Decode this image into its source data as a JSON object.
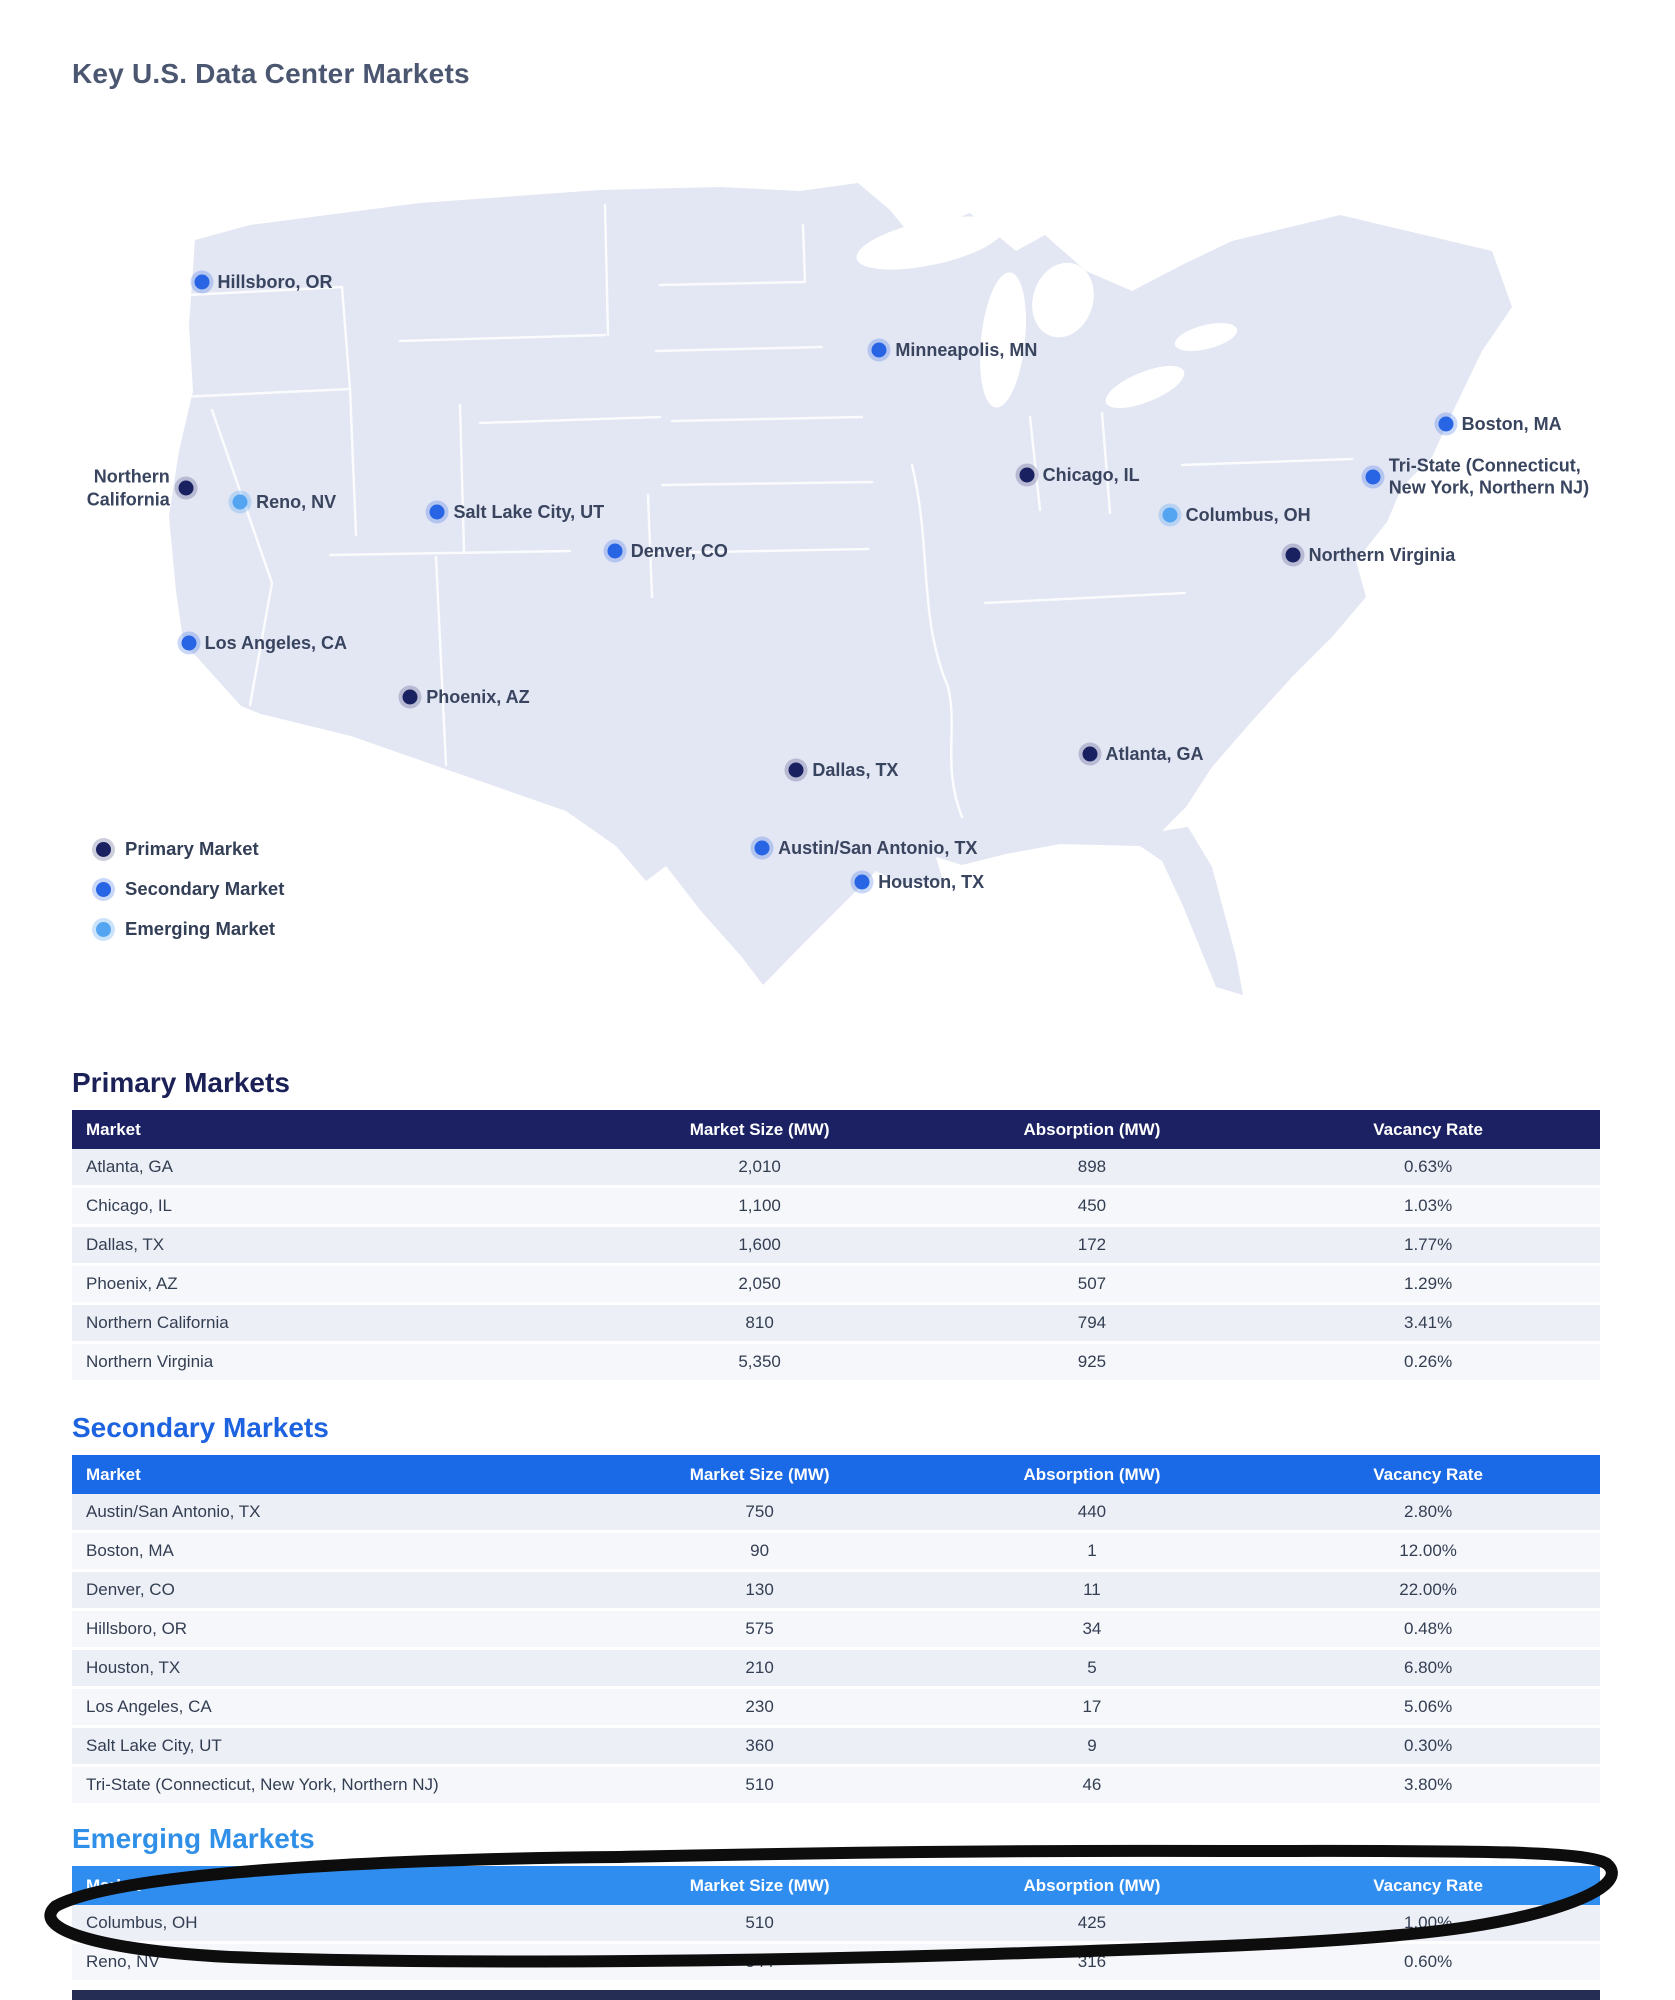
{
  "title": "Key U.S. Data Center Markets",
  "map": {
    "legend": [
      {
        "label": "Primary Market",
        "type": "primary"
      },
      {
        "label": "Secondary Market",
        "type": "secondary"
      },
      {
        "label": "Emerging Market",
        "type": "emerging"
      }
    ],
    "markers": [
      {
        "lines": [
          "Hillsboro, OR"
        ],
        "type": "secondary",
        "x": 7.1,
        "y": 13.9,
        "side": "right"
      },
      {
        "lines": [
          "Minneapolis, MN"
        ],
        "type": "secondary",
        "x": 54.5,
        "y": 22.0,
        "side": "right"
      },
      {
        "lines": [
          "Boston, MA"
        ],
        "type": "secondary",
        "x": 94.1,
        "y": 30.8,
        "side": "right"
      },
      {
        "lines": [
          "Tri-State (Connecticut,",
          "New York, Northern NJ)"
        ],
        "type": "secondary",
        "x": 89.0,
        "y": 37.1,
        "side": "right"
      },
      {
        "lines": [
          "Chicago, IL"
        ],
        "type": "primary",
        "x": 64.8,
        "y": 36.9,
        "side": "right"
      },
      {
        "lines": [
          "Northern",
          "California"
        ],
        "type": "primary",
        "x": 6.0,
        "y": 38.5,
        "side": "left"
      },
      {
        "lines": [
          "Reno, NV"
        ],
        "type": "emerging",
        "x": 9.8,
        "y": 40.1,
        "side": "right"
      },
      {
        "lines": [
          "Salt Lake City, UT"
        ],
        "type": "secondary",
        "x": 23.6,
        "y": 41.3,
        "side": "right"
      },
      {
        "lines": [
          "Columbus, OH"
        ],
        "type": "emerging",
        "x": 74.8,
        "y": 41.7,
        "side": "right"
      },
      {
        "lines": [
          "Denver, CO"
        ],
        "type": "secondary",
        "x": 36.0,
        "y": 46.0,
        "side": "right"
      },
      {
        "lines": [
          "Northern Virginia"
        ],
        "type": "primary",
        "x": 83.4,
        "y": 46.4,
        "side": "right"
      },
      {
        "lines": [
          "Los Angeles, CA"
        ],
        "type": "secondary",
        "x": 6.2,
        "y": 56.9,
        "side": "right"
      },
      {
        "lines": [
          "Phoenix, AZ"
        ],
        "type": "primary",
        "x": 21.7,
        "y": 63.3,
        "side": "right"
      },
      {
        "lines": [
          "Atlanta, GA"
        ],
        "type": "primary",
        "x": 69.2,
        "y": 70.1,
        "side": "right"
      },
      {
        "lines": [
          "Dallas, TX"
        ],
        "type": "primary",
        "x": 48.7,
        "y": 72.0,
        "side": "right"
      },
      {
        "lines": [
          "Austin/San Antonio, TX"
        ],
        "type": "secondary",
        "x": 46.3,
        "y": 81.3,
        "side": "right"
      },
      {
        "lines": [
          "Houston, TX"
        ],
        "type": "secondary",
        "x": 53.3,
        "y": 85.4,
        "side": "right"
      }
    ],
    "marker_colors": {
      "primary": "#1a2161",
      "secondary": "#2765e4",
      "emerging": "#54a5f1"
    }
  },
  "tables": [
    {
      "id": "primary",
      "heading": "Primary Markets",
      "header_color": "#1b2162",
      "columns": [
        "Market",
        "Market Size (MW)",
        "Absorption (MW)",
        "Vacancy Rate"
      ],
      "rows": [
        [
          "Atlanta, GA",
          "2,010",
          "898",
          "0.63%"
        ],
        [
          "Chicago, IL",
          "1,100",
          "450",
          "1.03%"
        ],
        [
          "Dallas, TX",
          "1,600",
          "172",
          "1.77%"
        ],
        [
          "Phoenix, AZ",
          "2,050",
          "507",
          "1.29%"
        ],
        [
          "Northern California",
          "810",
          "794",
          "3.41%"
        ],
        [
          "Northern Virginia",
          "5,350",
          "925",
          "0.26%"
        ]
      ]
    },
    {
      "id": "secondary",
      "heading": "Secondary Markets",
      "header_color": "#1a69e6",
      "columns": [
        "Market",
        "Market Size (MW)",
        "Absorption (MW)",
        "Vacancy Rate"
      ],
      "rows": [
        [
          "Austin/San Antonio, TX",
          "750",
          "440",
          "2.80%"
        ],
        [
          "Boston, MA",
          "90",
          "1",
          "12.00%"
        ],
        [
          "Denver, CO",
          "130",
          "11",
          "22.00%"
        ],
        [
          "Hillsboro, OR",
          "575",
          "34",
          "0.48%"
        ],
        [
          "Houston, TX",
          "210",
          "5",
          "6.80%"
        ],
        [
          "Los Angeles, CA",
          "230",
          "17",
          "5.06%"
        ],
        [
          "Salt Lake City, UT",
          "360",
          "9",
          "0.30%"
        ],
        [
          "Tri-State (Connecticut, New York, Northern NJ)",
          "510",
          "46",
          "3.80%"
        ]
      ]
    },
    {
      "id": "emerging",
      "heading": "Emerging Markets",
      "header_color": "#2f8df0",
      "columns": [
        "Market",
        "Market Size (MW)",
        "Absorption (MW)",
        "Vacancy Rate"
      ],
      "rows": [
        [
          "Columbus, OH",
          "510",
          "425",
          "1.00%"
        ],
        [
          "Reno, NV",
          "544",
          "316",
          "0.60%"
        ]
      ]
    }
  ],
  "annotation": {
    "shape": "hand-drawn-circle",
    "around": "Emerging Markets table header and Columbus, OH row"
  }
}
